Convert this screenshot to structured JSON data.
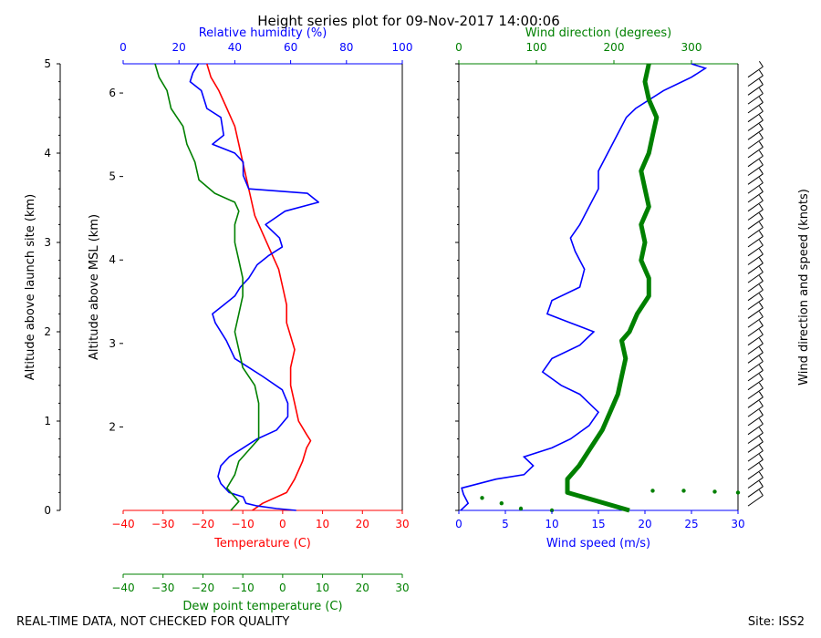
{
  "title": "Height series plot for 09-Nov-2017 14:00:06",
  "footer": {
    "left": "REAL-TIME DATA, NOT CHECKED FOR QUALITY",
    "right": "Site: ISS2"
  },
  "colors": {
    "temperature": "#ff0000",
    "humidity": "#0000ff",
    "dewpoint": "#008000",
    "wind_speed": "#0000ff",
    "wind_dir": "#008000",
    "barbs": "#000000",
    "axis": "#000000"
  },
  "chart_data": [
    {
      "type": "line",
      "name": "thermo",
      "x_axes": {
        "temperature": {
          "label": "Temperature (C)",
          "range": [
            -40,
            30
          ],
          "ticks": [
            -40,
            -30,
            -20,
            -10,
            0,
            10,
            20,
            30
          ],
          "tick_labels": [
            "−40",
            "−30",
            "−20",
            "−10",
            "0",
            "10",
            "20",
            "30"
          ]
        },
        "humidity": {
          "label": "Relative humidity (%)",
          "range": [
            0,
            100
          ],
          "ticks": [
            0,
            20,
            40,
            60,
            80,
            100
          ],
          "tick_labels": [
            "0",
            "20",
            "40",
            "60",
            "80",
            "100"
          ]
        },
        "dewpoint": {
          "label": "Dew point temperature (C)",
          "range": [
            -40,
            30
          ],
          "ticks": [
            -40,
            -30,
            -20,
            -10,
            0,
            10,
            20,
            30
          ],
          "tick_labels": [
            "−40",
            "−30",
            "−20",
            "−10",
            "0",
            "10",
            "20",
            "30"
          ]
        }
      },
      "y_axes": {
        "agl": {
          "label": "Altitude above launch site (km)",
          "range": [
            0,
            5
          ],
          "ticks": [
            0,
            1,
            2,
            3,
            4,
            5
          ],
          "tick_labels": [
            "0",
            "1",
            "2",
            "3",
            "4",
            "5"
          ]
        },
        "msl": {
          "label": "Altitude above MSL (km)",
          "range": [
            1.0,
            6.35
          ],
          "ticks": [
            2,
            3,
            4,
            5,
            6
          ],
          "tick_labels": [
            "2",
            "3",
            "4",
            "5",
            "6"
          ]
        }
      },
      "series": [
        {
          "name": "Temperature",
          "axis": "temperature",
          "points": [
            [
              -7.6,
              0.0
            ],
            [
              -5,
              0.08
            ],
            [
              1,
              0.2
            ],
            [
              3,
              0.35
            ],
            [
              5,
              0.55
            ],
            [
              6,
              0.7
            ],
            [
              7,
              0.78
            ],
            [
              6,
              0.85
            ],
            [
              4,
              1.0
            ],
            [
              3,
              1.2
            ],
            [
              2,
              1.4
            ],
            [
              2,
              1.6
            ],
            [
              3,
              1.8
            ],
            [
              2,
              1.95
            ],
            [
              1,
              2.1
            ],
            [
              1,
              2.3
            ],
            [
              0,
              2.5
            ],
            [
              -1,
              2.7
            ],
            [
              -3,
              2.9
            ],
            [
              -5,
              3.1
            ],
            [
              -7,
              3.3
            ],
            [
              -8,
              3.5
            ],
            [
              -9,
              3.7
            ],
            [
              -10,
              3.9
            ],
            [
              -11,
              4.1
            ],
            [
              -12,
              4.3
            ],
            [
              -14,
              4.5
            ],
            [
              -16,
              4.7
            ],
            [
              -18,
              4.85
            ],
            [
              -19,
              5.0
            ]
          ]
        },
        {
          "name": "Relative humidity",
          "axis": "humidity",
          "points": [
            [
              62,
              0.0
            ],
            [
              55,
              0.02
            ],
            [
              48,
              0.05
            ],
            [
              44,
              0.08
            ],
            [
              43,
              0.15
            ],
            [
              38,
              0.2
            ],
            [
              35,
              0.3
            ],
            [
              34,
              0.38
            ],
            [
              35,
              0.5
            ],
            [
              38,
              0.6
            ],
            [
              43,
              0.7
            ],
            [
              48,
              0.8
            ],
            [
              55,
              0.9
            ],
            [
              59,
              1.05
            ],
            [
              59,
              1.2
            ],
            [
              57,
              1.35
            ],
            [
              50,
              1.5
            ],
            [
              45,
              1.6
            ],
            [
              40,
              1.7
            ],
            [
              37,
              1.9
            ],
            [
              33,
              2.1
            ],
            [
              32,
              2.2
            ],
            [
              36,
              2.3
            ],
            [
              40,
              2.4
            ],
            [
              42,
              2.5
            ],
            [
              45,
              2.6
            ],
            [
              48,
              2.75
            ],
            [
              52,
              2.85
            ],
            [
              57,
              2.95
            ],
            [
              56,
              3.05
            ],
            [
              51,
              3.2
            ],
            [
              58,
              3.35
            ],
            [
              70,
              3.45
            ],
            [
              66,
              3.55
            ],
            [
              45,
              3.6
            ],
            [
              43,
              3.75
            ],
            [
              43,
              3.9
            ],
            [
              40,
              4.0
            ],
            [
              32,
              4.1
            ],
            [
              36,
              4.2
            ],
            [
              35,
              4.4
            ],
            [
              30,
              4.5
            ],
            [
              28,
              4.7
            ],
            [
              24,
              4.8
            ],
            [
              25,
              4.9
            ],
            [
              27,
              5.0
            ]
          ]
        },
        {
          "name": "Dew point temperature",
          "axis": "dewpoint",
          "points": [
            [
              -13,
              0.0
            ],
            [
              -11,
              0.1
            ],
            [
              -14,
              0.25
            ],
            [
              -12,
              0.4
            ],
            [
              -11,
              0.55
            ],
            [
              -8,
              0.7
            ],
            [
              -6,
              0.8
            ],
            [
              -6,
              1.0
            ],
            [
              -6,
              1.2
            ],
            [
              -7,
              1.4
            ],
            [
              -10,
              1.6
            ],
            [
              -11,
              1.8
            ],
            [
              -12,
              2.0
            ],
            [
              -11,
              2.2
            ],
            [
              -10,
              2.4
            ],
            [
              -10,
              2.6
            ],
            [
              -11,
              2.8
            ],
            [
              -12,
              3.0
            ],
            [
              -12,
              3.2
            ],
            [
              -11,
              3.35
            ],
            [
              -12,
              3.45
            ],
            [
              -17,
              3.55
            ],
            [
              -21,
              3.7
            ],
            [
              -22,
              3.9
            ],
            [
              -24,
              4.1
            ],
            [
              -25,
              4.3
            ],
            [
              -28,
              4.5
            ],
            [
              -29,
              4.7
            ],
            [
              -31,
              4.85
            ],
            [
              -32,
              5.0
            ]
          ]
        }
      ]
    },
    {
      "type": "line",
      "name": "wind",
      "x_axes": {
        "wind_speed": {
          "label": "Wind speed (m/s)",
          "range": [
            0,
            30
          ],
          "ticks": [
            0,
            5,
            10,
            15,
            20,
            25,
            30
          ],
          "tick_labels": [
            "0",
            "5",
            "10",
            "15",
            "20",
            "25",
            "30"
          ]
        },
        "wind_dir": {
          "label": "Wind direction (degrees)",
          "range": [
            0,
            360
          ],
          "ticks": [
            0,
            100,
            200,
            300
          ],
          "tick_labels": [
            "0",
            "100",
            "200",
            "300"
          ]
        }
      },
      "series": [
        {
          "name": "Wind speed",
          "axis": "wind_speed",
          "points": [
            [
              0.2,
              0.0
            ],
            [
              1,
              0.08
            ],
            [
              0.5,
              0.18
            ],
            [
              0.3,
              0.25
            ],
            [
              4,
              0.35
            ],
            [
              7,
              0.4
            ],
            [
              8,
              0.5
            ],
            [
              7,
              0.6
            ],
            [
              10,
              0.7
            ],
            [
              12,
              0.8
            ],
            [
              14,
              0.95
            ],
            [
              15,
              1.1
            ],
            [
              13,
              1.3
            ],
            [
              11,
              1.4
            ],
            [
              9,
              1.55
            ],
            [
              10,
              1.7
            ],
            [
              13,
              1.85
            ],
            [
              14.5,
              2.0
            ],
            [
              12,
              2.1
            ],
            [
              9.5,
              2.2
            ],
            [
              10,
              2.35
            ],
            [
              13,
              2.5
            ],
            [
              13.5,
              2.7
            ],
            [
              12.5,
              2.9
            ],
            [
              12,
              3.05
            ],
            [
              13,
              3.2
            ],
            [
              14,
              3.4
            ],
            [
              15,
              3.6
            ],
            [
              15,
              3.8
            ],
            [
              16,
              4.0
            ],
            [
              17,
              4.2
            ],
            [
              18,
              4.4
            ],
            [
              19,
              4.5
            ],
            [
              22,
              4.7
            ],
            [
              24,
              4.8
            ],
            [
              25,
              4.85
            ],
            [
              26.5,
              4.95
            ],
            [
              25,
              5.0
            ]
          ]
        },
        {
          "name": "Wind direction",
          "axis": "wind_dir",
          "points": [
            [
              220,
              0.0
            ],
            [
              140,
              0.2
            ],
            [
              140,
              0.35
            ],
            [
              155,
              0.5
            ],
            [
              170,
              0.7
            ],
            [
              185,
              0.9
            ],
            [
              195,
              1.1
            ],
            [
              205,
              1.3
            ],
            [
              210,
              1.5
            ],
            [
              215,
              1.7
            ],
            [
              210,
              1.9
            ],
            [
              220,
              2.0
            ],
            [
              230,
              2.2
            ],
            [
              245,
              2.4
            ],
            [
              245,
              2.6
            ],
            [
              235,
              2.8
            ],
            [
              240,
              3.0
            ],
            [
              235,
              3.2
            ],
            [
              245,
              3.4
            ],
            [
              240,
              3.6
            ],
            [
              235,
              3.8
            ],
            [
              245,
              4.0
            ],
            [
              250,
              4.2
            ],
            [
              255,
              4.4
            ],
            [
              245,
              4.6
            ],
            [
              240,
              4.8
            ],
            [
              245,
              5.0
            ]
          ]
        },
        {
          "name": "Surface wind direction dots",
          "axis": "wind_dir",
          "points": [
            [
              250,
              0.22
            ],
            [
              290,
              0.22
            ],
            [
              330,
              0.21
            ],
            [
              360,
              0.2
            ],
            [
              30,
              0.14
            ],
            [
              55,
              0.08
            ],
            [
              80,
              0.02
            ],
            [
              120,
              0.0
            ]
          ]
        }
      ],
      "barbs_label": "Wind direction and speed (knots)"
    }
  ]
}
